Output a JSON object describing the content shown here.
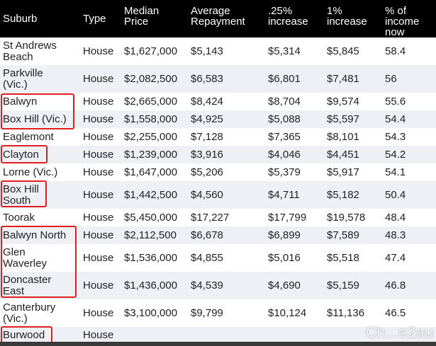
{
  "columns": [
    "Suburb",
    "Type",
    "Median\nPrice",
    "Average\nRepayment",
    ".25%\nincrease",
    "1%\nincrease",
    "% of\nincome\nnow"
  ],
  "rows": [
    {
      "suburb": "St Andrews\nBeach",
      "type": "House",
      "median": "$1,627,000",
      "repay": "$5,143",
      "inc25": "$5,314",
      "inc1": "$5,845",
      "pct": "58.4"
    },
    {
      "suburb": "Parkville\n(Vic.)",
      "type": "House",
      "median": "$2,082,500",
      "repay": "$6,583",
      "inc25": "$6,801",
      "inc1": "$7,481",
      "pct": "56"
    },
    {
      "suburb": "Balwyn",
      "type": "House",
      "median": "$2,665,000",
      "repay": "$8,424",
      "inc25": "$8,704",
      "inc1": "$9,574",
      "pct": "55.6"
    },
    {
      "suburb": "Box Hill (Vic.)",
      "type": "House",
      "median": "$1,558,000",
      "repay": "$4,925",
      "inc25": "$5,088",
      "inc1": "$5,597",
      "pct": "54.4"
    },
    {
      "suburb": "Eaglemont",
      "type": "House",
      "median": "$2,255,000",
      "repay": "$7,128",
      "inc25": "$7,365",
      "inc1": "$8,101",
      "pct": "54.3"
    },
    {
      "suburb": "Clayton",
      "type": "House",
      "median": "$1,239,000",
      "repay": "$3,916",
      "inc25": "$4,046",
      "inc1": "$4,451",
      "pct": "54.2"
    },
    {
      "suburb": "Lorne (Vic.)",
      "type": "House",
      "median": "$1,647,000",
      "repay": "$5,206",
      "inc25": "$5,379",
      "inc1": "$5,917",
      "pct": "54.1"
    },
    {
      "suburb": "Box Hill\nSouth",
      "type": "House",
      "median": "$1,442,500",
      "repay": "$4,560",
      "inc25": "$4,711",
      "inc1": "$5,182",
      "pct": "50.4"
    },
    {
      "suburb": "Toorak",
      "type": "House",
      "median": "$5,450,000",
      "repay": "$17,227",
      "inc25": "$17,799",
      "inc1": "$19,578",
      "pct": "48.4"
    },
    {
      "suburb": "Balwyn North",
      "type": "House",
      "median": "$2,112,500",
      "repay": "$6,678",
      "inc25": "$6,899",
      "inc1": "$7,589",
      "pct": "48.3"
    },
    {
      "suburb": "Glen\nWaverley",
      "type": "House",
      "median": "$1,536,000",
      "repay": "$4,855",
      "inc25": "$5,016",
      "inc1": "$5,518",
      "pct": "47.4"
    },
    {
      "suburb": "Doncaster\nEast",
      "type": "House",
      "median": "$1,436,000",
      "repay": "$4,539",
      "inc25": "$4,690",
      "inc1": "$5,159",
      "pct": "46.8"
    },
    {
      "suburb": "Canterbury\n(Vic.)",
      "type": "House",
      "median": "$3,100,000",
      "repay": "$9,799",
      "inc25": "$10,124",
      "inc1": "$11,136",
      "pct": "46.5"
    },
    {
      "suburb": "Burwood",
      "type": "House",
      "median": "",
      "repay": "",
      "inc25": "",
      "inc1": "",
      "pct": ""
    }
  ],
  "highlights": [
    "Balwyn, Box Hill (Vic.)",
    "Clayton",
    "Box Hill South",
    "Balwyn North, Glen Waverley, Doncaster East",
    "Burwood"
  ],
  "watermark": "Ch...e2au",
  "colors": {
    "header_bg": "#000000",
    "stripe": "#eef0f5",
    "highlight": "#e02020"
  }
}
